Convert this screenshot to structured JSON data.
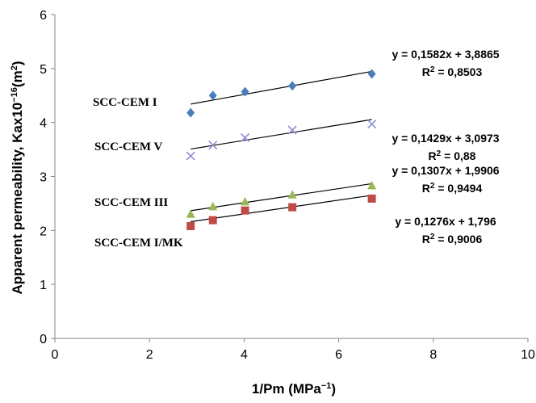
{
  "chart_data": {
    "type": "scatter",
    "xlabel_main": "1/Pm (MPa",
    "xlabel_sup": "−1",
    "xlabel_end": ")",
    "ylabel_main": "Apparent permeability, Kax10",
    "ylabel_sup1": "−16",
    "ylabel_mid": "(m",
    "ylabel_sup2": "2",
    "ylabel_end": ")",
    "xlim": [
      0,
      10
    ],
    "ylim": [
      0,
      6
    ],
    "xticks": [
      "0",
      "2",
      "4",
      "6",
      "8",
      "10"
    ],
    "yticks": [
      "0",
      "1",
      "2",
      "3",
      "4",
      "5",
      "6"
    ],
    "grid": false,
    "legend": "none",
    "series": [
      {
        "name": "SCC-CEM I",
        "marker": "diamond",
        "color": "#4a7ebb",
        "x": [
          2.87,
          3.34,
          4.02,
          5.02,
          6.7
        ],
        "y": [
          4.18,
          4.5,
          4.57,
          4.68,
          4.9
        ],
        "trend": {
          "slope": 0.1582,
          "intercept": 3.8865
        },
        "equation": "y = 0,1582x + 3,8865",
        "r2_label": "R",
        "r2_sup": "2",
        "r2_value": " = 0,8503"
      },
      {
        "name": "SCC-CEM V",
        "marker": "x",
        "color": "#8e8ed6",
        "x": [
          2.87,
          3.34,
          4.02,
          5.02,
          6.7
        ],
        "y": [
          3.38,
          3.58,
          3.72,
          3.86,
          3.97
        ],
        "trend": {
          "slope": 0.1429,
          "intercept": 3.0973
        },
        "equation": "y = 0,1429x + 3,0973",
        "r2_label": "R",
        "r2_sup": "2",
        "r2_value": " = 0,88"
      },
      {
        "name": "SCC-CEM III",
        "marker": "triangle",
        "color": "#98b954",
        "x": [
          2.87,
          3.34,
          4.02,
          5.02,
          6.7
        ],
        "y": [
          2.3,
          2.44,
          2.53,
          2.66,
          2.83
        ],
        "trend": {
          "slope": 0.1307,
          "intercept": 1.9906
        },
        "equation": "y = 0,1307x + 1,9906",
        "r2_label": "R",
        "r2_sup": "2",
        "r2_value": " = 0,9494"
      },
      {
        "name": "SCC-CEM I/MK",
        "marker": "square",
        "color": "#be4b48",
        "x": [
          2.87,
          3.34,
          4.02,
          5.02,
          6.7
        ],
        "y": [
          2.08,
          2.19,
          2.37,
          2.43,
          2.59
        ],
        "trend": {
          "slope": 0.1276,
          "intercept": 1.796
        },
        "equation": "y = 0,1276x + 1,796",
        "r2_label": "R",
        "r2_sup": "2",
        "r2_value": " = 0,9006"
      }
    ]
  }
}
